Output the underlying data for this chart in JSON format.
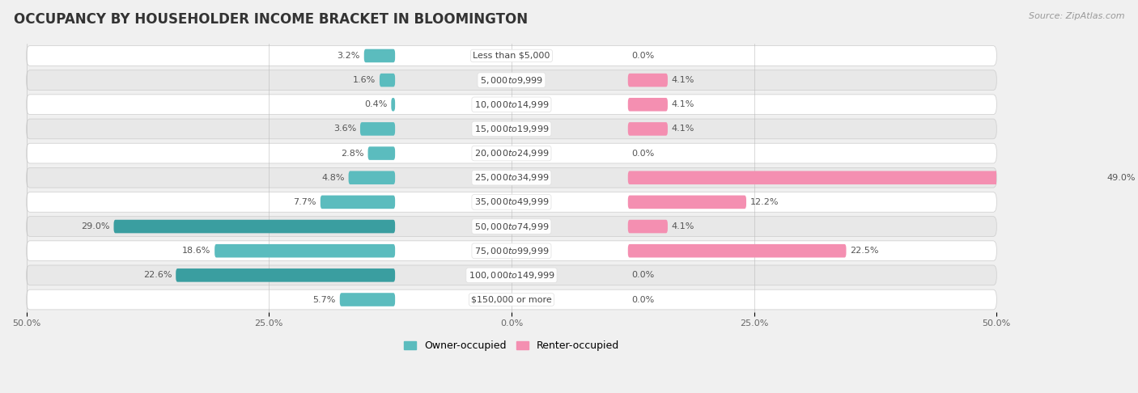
{
  "title": "OCCUPANCY BY HOUSEHOLDER INCOME BRACKET IN BLOOMINGTON",
  "source": "Source: ZipAtlas.com",
  "categories": [
    "Less than $5,000",
    "$5,000 to $9,999",
    "$10,000 to $14,999",
    "$15,000 to $19,999",
    "$20,000 to $24,999",
    "$25,000 to $34,999",
    "$35,000 to $49,999",
    "$50,000 to $74,999",
    "$75,000 to $99,999",
    "$100,000 to $149,999",
    "$150,000 or more"
  ],
  "owner_values": [
    3.2,
    1.6,
    0.4,
    3.6,
    2.8,
    4.8,
    7.7,
    29.0,
    18.6,
    22.6,
    5.7
  ],
  "renter_values": [
    0.0,
    4.1,
    4.1,
    4.1,
    0.0,
    49.0,
    12.2,
    4.1,
    22.5,
    0.0,
    0.0
  ],
  "owner_color": "#5bbcbe",
  "renter_color": "#f48fb1",
  "owner_color_dark": "#3a9ea0",
  "bar_height": 0.55,
  "background_color": "#f0f0f0",
  "row_bg_light": "#ffffff",
  "row_bg_dark": "#e8e8e8",
  "xlim": 50.0,
  "label_region": 12.0,
  "title_fontsize": 12,
  "label_fontsize": 8,
  "tick_fontsize": 8,
  "legend_fontsize": 9,
  "source_fontsize": 8
}
